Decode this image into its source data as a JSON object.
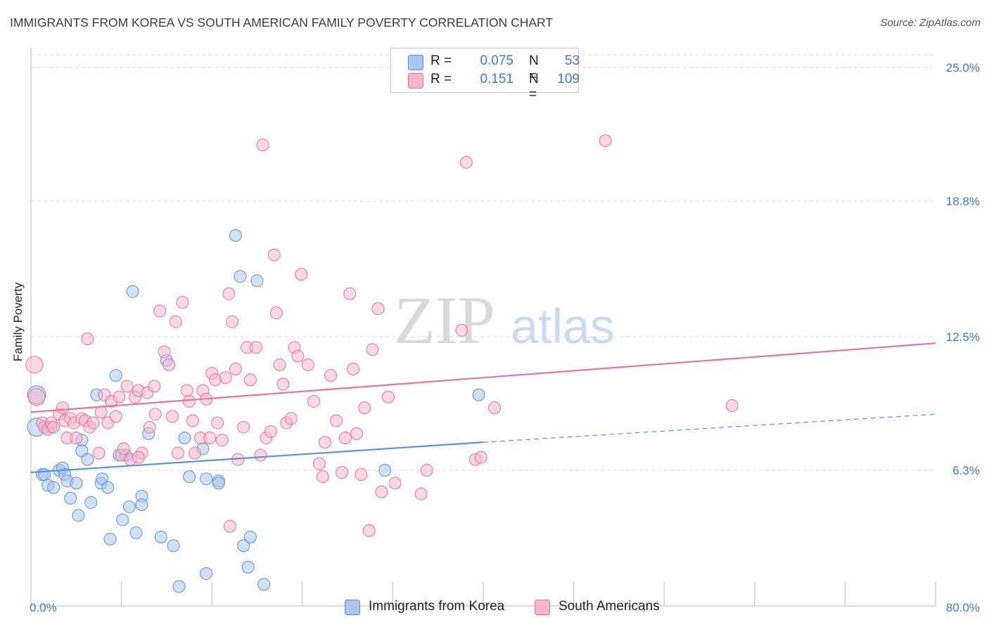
{
  "title": "IMMIGRANTS FROM KOREA VS SOUTH AMERICAN FAMILY POVERTY CORRELATION CHART",
  "source": "Source: ZipAtlas.com",
  "watermark": {
    "zip": "ZIP",
    "atlas": "atlas"
  },
  "legend_top": {
    "rows": [
      {
        "r_label": "R =",
        "r_value": "0.075",
        "n_label": "N =",
        "n_value": "53",
        "color": "#a8c6f0"
      },
      {
        "r_label": "R =",
        "r_value": "0.151",
        "n_label": "N =",
        "n_value": "109",
        "color": "#f6b6cb"
      }
    ]
  },
  "legend_bottom": {
    "items": [
      {
        "label": "Immigrants from Korea",
        "color": "#a8c6f0"
      },
      {
        "label": "South Americans",
        "color": "#f6b6cb"
      }
    ]
  },
  "chart_data": {
    "type": "scatter",
    "title": "IMMIGRANTS FROM KOREA VS SOUTH AMERICAN FAMILY POVERTY CORRELATION CHART",
    "xlabel": "",
    "ylabel": "Family Poverty",
    "xlim": [
      0,
      80
    ],
    "ylim": [
      0,
      25.0
    ],
    "x_tick_labels": [
      {
        "value": 0,
        "label": "0.0%"
      },
      {
        "value": 80,
        "label": "80.0%"
      }
    ],
    "x_tick_marks": [
      0,
      8,
      16,
      24,
      32,
      40,
      48,
      56,
      64,
      72,
      80
    ],
    "y_tick_labels": [
      {
        "value": 6.3,
        "label": "6.3%"
      },
      {
        "value": 12.5,
        "label": "12.5%"
      },
      {
        "value": 18.8,
        "label": "18.8%"
      },
      {
        "value": 25.0,
        "label": "25.0%"
      }
    ],
    "grid": true,
    "legend": "top-center",
    "series": [
      {
        "name": "Immigrants from Korea",
        "color": "#5b93dc",
        "fill": "#a8c6f0",
        "trend": {
          "x0": 0,
          "y0": 6.2,
          "x1": 40,
          "y1": 7.6,
          "dashed_to_x": 80,
          "dashed_to_y": 8.9
        },
        "points": [
          [
            0.5,
            8.3
          ],
          [
            0.5,
            9.8
          ],
          [
            1,
            6.1
          ],
          [
            1.2,
            6.1
          ],
          [
            1.5,
            5.6
          ],
          [
            1.8,
            8.3
          ],
          [
            2,
            5.5
          ],
          [
            2.5,
            6.3
          ],
          [
            2.8,
            6.4
          ],
          [
            3,
            6.1
          ],
          [
            3.2,
            5.8
          ],
          [
            3.5,
            5.0
          ],
          [
            4,
            5.7
          ],
          [
            4.2,
            4.2
          ],
          [
            4.5,
            7.7
          ],
          [
            4.5,
            7.2
          ],
          [
            5,
            6.8
          ],
          [
            5.3,
            4.8
          ],
          [
            5.8,
            9.8
          ],
          [
            6.2,
            5.7
          ],
          [
            6.3,
            5.9
          ],
          [
            6.8,
            5.5
          ],
          [
            7,
            3.1
          ],
          [
            7.5,
            10.7
          ],
          [
            7.8,
            7.0
          ],
          [
            8.1,
            4.0
          ],
          [
            8.4,
            7.0
          ],
          [
            8.7,
            4.6
          ],
          [
            9,
            14.6
          ],
          [
            9.3,
            3.4
          ],
          [
            9.8,
            5.1
          ],
          [
            9.8,
            4.7
          ],
          [
            10.4,
            8.0
          ],
          [
            11.5,
            3.2
          ],
          [
            12,
            11.4
          ],
          [
            12.6,
            2.8
          ],
          [
            13.1,
            0.9
          ],
          [
            13.6,
            7.8
          ],
          [
            14,
            6.0
          ],
          [
            15.2,
            7.3
          ],
          [
            15.5,
            1.5
          ],
          [
            15.5,
            5.9
          ],
          [
            16.6,
            5.8
          ],
          [
            16.6,
            5.7
          ],
          [
            18.1,
            17.2
          ],
          [
            18.5,
            15.3
          ],
          [
            18.8,
            2.8
          ],
          [
            19.2,
            1.8
          ],
          [
            19.4,
            3.2
          ],
          [
            20,
            15.1
          ],
          [
            20.6,
            1.0
          ],
          [
            31.3,
            6.3
          ],
          [
            39.6,
            9.8
          ]
        ]
      },
      {
        "name": "South Americans",
        "color": "#e8739d",
        "fill": "#f6b6cb",
        "trend": {
          "x0": 0,
          "y0": 9.0,
          "x1": 80,
          "y1": 12.2
        },
        "points": [
          [
            0.3,
            11.2
          ],
          [
            0.5,
            9.7
          ],
          [
            1,
            8.5
          ],
          [
            1.2,
            8.3
          ],
          [
            1.5,
            8.2
          ],
          [
            1.8,
            8.5
          ],
          [
            2,
            8.3
          ],
          [
            2.5,
            8.9
          ],
          [
            2.8,
            9.2
          ],
          [
            3,
            8.6
          ],
          [
            3.2,
            7.8
          ],
          [
            3.5,
            8.7
          ],
          [
            3.8,
            8.5
          ],
          [
            4,
            7.8
          ],
          [
            4.5,
            8.7
          ],
          [
            4.8,
            8.6
          ],
          [
            5,
            12.4
          ],
          [
            5.2,
            8.3
          ],
          [
            5.5,
            8.5
          ],
          [
            6,
            7.1
          ],
          [
            6.2,
            9.0
          ],
          [
            6.5,
            9.8
          ],
          [
            6.8,
            8.5
          ],
          [
            7.1,
            9.5
          ],
          [
            7.5,
            8.8
          ],
          [
            7.8,
            9.7
          ],
          [
            8,
            7.0
          ],
          [
            8.2,
            7.3
          ],
          [
            8.5,
            10.2
          ],
          [
            8.8,
            6.8
          ],
          [
            9.2,
            9.7
          ],
          [
            9.5,
            10.0
          ],
          [
            9.8,
            7.1
          ],
          [
            10.3,
            9.9
          ],
          [
            10.5,
            8.3
          ],
          [
            10.9,
            10.2
          ],
          [
            11,
            8.9
          ],
          [
            11.4,
            13.7
          ],
          [
            11.8,
            11.8
          ],
          [
            12.2,
            11.2
          ],
          [
            12.5,
            8.8
          ],
          [
            12.8,
            13.2
          ],
          [
            13,
            7.1
          ],
          [
            13.4,
            14.1
          ],
          [
            13.8,
            10.0
          ],
          [
            14,
            9.5
          ],
          [
            14.3,
            8.6
          ],
          [
            14.5,
            7.1
          ],
          [
            15,
            7.8
          ],
          [
            15.2,
            10.0
          ],
          [
            15.5,
            9.6
          ],
          [
            15.8,
            7.8
          ],
          [
            16,
            10.8
          ],
          [
            16.3,
            10.5
          ],
          [
            16.5,
            8.5
          ],
          [
            16.9,
            7.7
          ],
          [
            17.2,
            10.6
          ],
          [
            17.5,
            14.5
          ],
          [
            17.8,
            13.2
          ],
          [
            18.1,
            11.0
          ],
          [
            18.3,
            6.8
          ],
          [
            18.8,
            8.3
          ],
          [
            19.1,
            12.0
          ],
          [
            19.4,
            10.5
          ],
          [
            19.9,
            12.0
          ],
          [
            20.3,
            7.0
          ],
          [
            20.5,
            21.4
          ],
          [
            20.8,
            7.8
          ],
          [
            21.2,
            8.1
          ],
          [
            21.5,
            16.3
          ],
          [
            21.7,
            13.6
          ],
          [
            22,
            11.2
          ],
          [
            22.3,
            10.3
          ],
          [
            22.6,
            8.5
          ],
          [
            23,
            8.7
          ],
          [
            23.3,
            12.0
          ],
          [
            23.6,
            11.6
          ],
          [
            23.9,
            15.4
          ],
          [
            24.5,
            11.2
          ],
          [
            25,
            9.5
          ],
          [
            25.5,
            6.6
          ],
          [
            25.8,
            6.0
          ],
          [
            26,
            7.6
          ],
          [
            26.5,
            10.7
          ],
          [
            27,
            8.6
          ],
          [
            27.5,
            6.2
          ],
          [
            27.8,
            7.8
          ],
          [
            28.2,
            14.5
          ],
          [
            28.5,
            11.0
          ],
          [
            28.8,
            8.0
          ],
          [
            29.2,
            6.1
          ],
          [
            29.5,
            9.2
          ],
          [
            29.9,
            3.5
          ],
          [
            30.2,
            11.9
          ],
          [
            30.7,
            13.8
          ],
          [
            31,
            5.3
          ],
          [
            31.6,
            9.7
          ],
          [
            32.2,
            5.7
          ],
          [
            34.5,
            5.2
          ],
          [
            35,
            6.3
          ],
          [
            38.1,
            12.8
          ],
          [
            38.5,
            20.6
          ],
          [
            39.3,
            6.8
          ],
          [
            39.8,
            6.9
          ],
          [
            41,
            9.2
          ],
          [
            62,
            9.3
          ],
          [
            50.8,
            21.6
          ],
          [
            17.6,
            3.7
          ],
          [
            9.5,
            6.9
          ]
        ]
      }
    ]
  }
}
